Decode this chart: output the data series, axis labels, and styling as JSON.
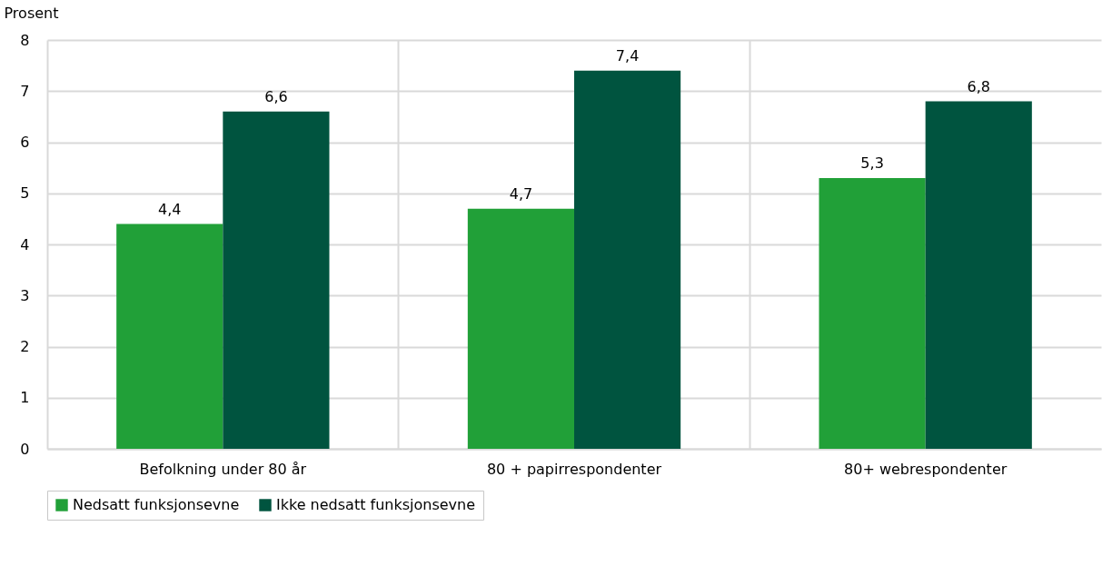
{
  "chart_data": {
    "type": "bar",
    "ylabel": "Prosent",
    "categories": [
      "Befolkning under 80 år",
      "80 + papirrespondenter",
      "80+ webrespondenter"
    ],
    "series": [
      {
        "name": "Nedsatt funksjonsevne",
        "color": "#21a038",
        "values": [
          4.4,
          4.7,
          5.3
        ],
        "value_labels": [
          "4,4",
          "4,7",
          "5,3"
        ]
      },
      {
        "name": "Ikke nedsatt funksjonsevne",
        "color": "#00543f",
        "values": [
          6.6,
          7.4,
          6.8
        ],
        "value_labels": [
          "6,6",
          "7,4",
          "6,8"
        ]
      }
    ],
    "ylim": [
      0,
      8
    ],
    "yticks": [
      0,
      1,
      2,
      3,
      4,
      5,
      6,
      7,
      8
    ],
    "grid": true,
    "legend": "bottom"
  }
}
